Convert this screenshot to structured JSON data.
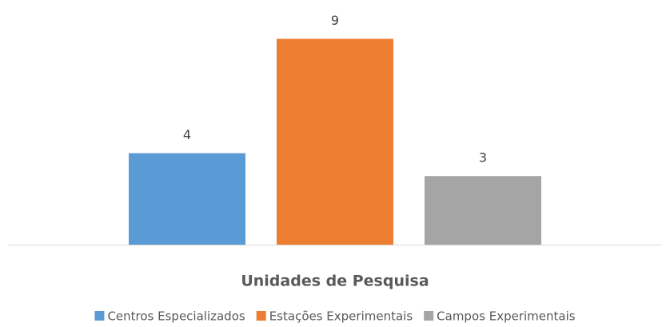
{
  "chart_data": {
    "type": "bar",
    "categories": [
      "Unidades de Pesquisa"
    ],
    "series": [
      {
        "name": "Centros Especializados",
        "color": "#5b9bd5",
        "values": [
          4
        ]
      },
      {
        "name": "Estações Experimentais",
        "color": "#ed7d31",
        "values": [
          9
        ]
      },
      {
        "name": "Campos Experimentais",
        "color": "#a5a5a5",
        "values": [
          3
        ]
      }
    ],
    "ylim": [
      0,
      10
    ],
    "legend": "bottom"
  }
}
